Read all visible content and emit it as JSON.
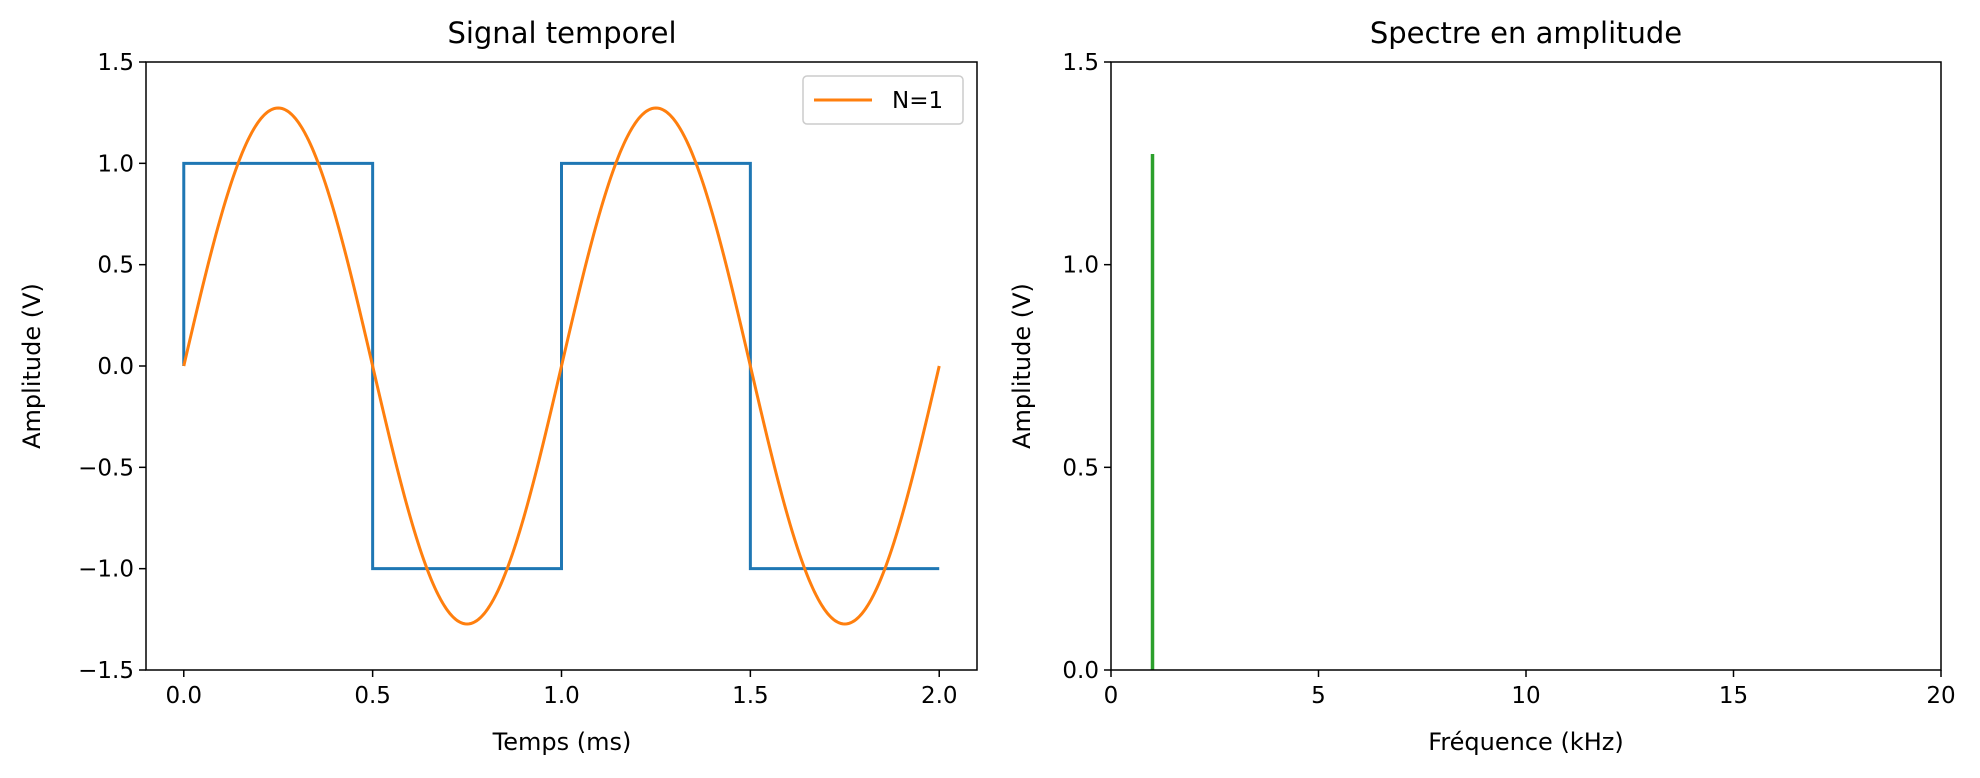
{
  "chart_data": [
    {
      "type": "line",
      "title": "Signal temporel",
      "xlabel": "Temps (ms)",
      "ylabel": "Amplitude (V)",
      "xlim": [
        -0.1,
        2.1
      ],
      "ylim": [
        -1.5,
        1.5
      ],
      "xticks": [
        0.0,
        0.5,
        1.0,
        1.5,
        2.0
      ],
      "xtick_labels": [
        "0.0",
        "0.5",
        "1.0",
        "1.5",
        "2.0"
      ],
      "yticks": [
        -1.5,
        -1.0,
        -0.5,
        0.0,
        0.5,
        1.0,
        1.5
      ],
      "ytick_labels": [
        "−1.5",
        "−1.0",
        "−0.5",
        "0.0",
        "0.5",
        "1.0",
        "1.5"
      ],
      "grid": false,
      "legend": {
        "position": "top-right",
        "entries": [
          "N=1"
        ]
      },
      "series": [
        {
          "kind": "step",
          "color": "#1f77b4",
          "x": [
            0.0,
            0.0,
            0.5,
            0.5,
            1.0,
            1.0,
            1.5,
            1.5,
            2.0
          ],
          "y": [
            0.0,
            1.0,
            1.0,
            -1.0,
            -1.0,
            1.0,
            1.0,
            -1.0,
            -1.0
          ]
        },
        {
          "name": "N=1",
          "kind": "sine",
          "color": "#ff7f0e",
          "amplitude": 1.273,
          "frequency_khz": 1,
          "x_range": [
            0.0,
            2.0
          ]
        }
      ]
    },
    {
      "type": "bar",
      "title": "Spectre en amplitude",
      "xlabel": "Fréquence (kHz)",
      "ylabel": "Amplitude (V)",
      "xlim": [
        0,
        20
      ],
      "ylim": [
        0,
        1.5
      ],
      "xticks": [
        0,
        5,
        10,
        15,
        20
      ],
      "xtick_labels": [
        "0",
        "5",
        "10",
        "15",
        "20"
      ],
      "yticks": [
        0.0,
        0.5,
        1.0,
        1.5
      ],
      "ytick_labels": [
        "0.0",
        "0.5",
        "1.0",
        "1.5"
      ],
      "grid": false,
      "series": [
        {
          "color": "#2ca02c",
          "x": [
            1
          ],
          "values": [
            1.273
          ]
        }
      ]
    }
  ]
}
